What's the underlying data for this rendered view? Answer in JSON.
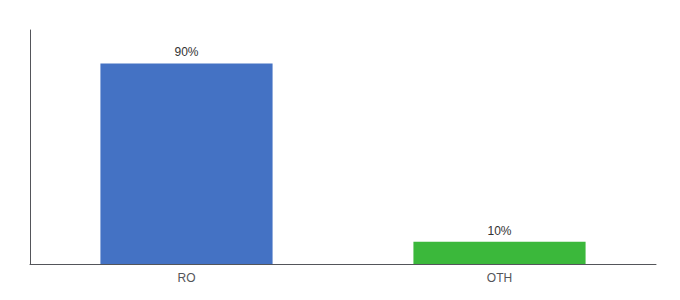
{
  "chart_data": {
    "type": "bar",
    "categories": [
      "RO",
      "OTH"
    ],
    "values": [
      90,
      10
    ],
    "value_labels": [
      "90%",
      "10%"
    ],
    "colors": [
      "#4472c4",
      "#3bb83b"
    ],
    "ylim": [
      0,
      105
    ],
    "grid": false,
    "data_labels": true,
    "tick_labels": "x"
  }
}
